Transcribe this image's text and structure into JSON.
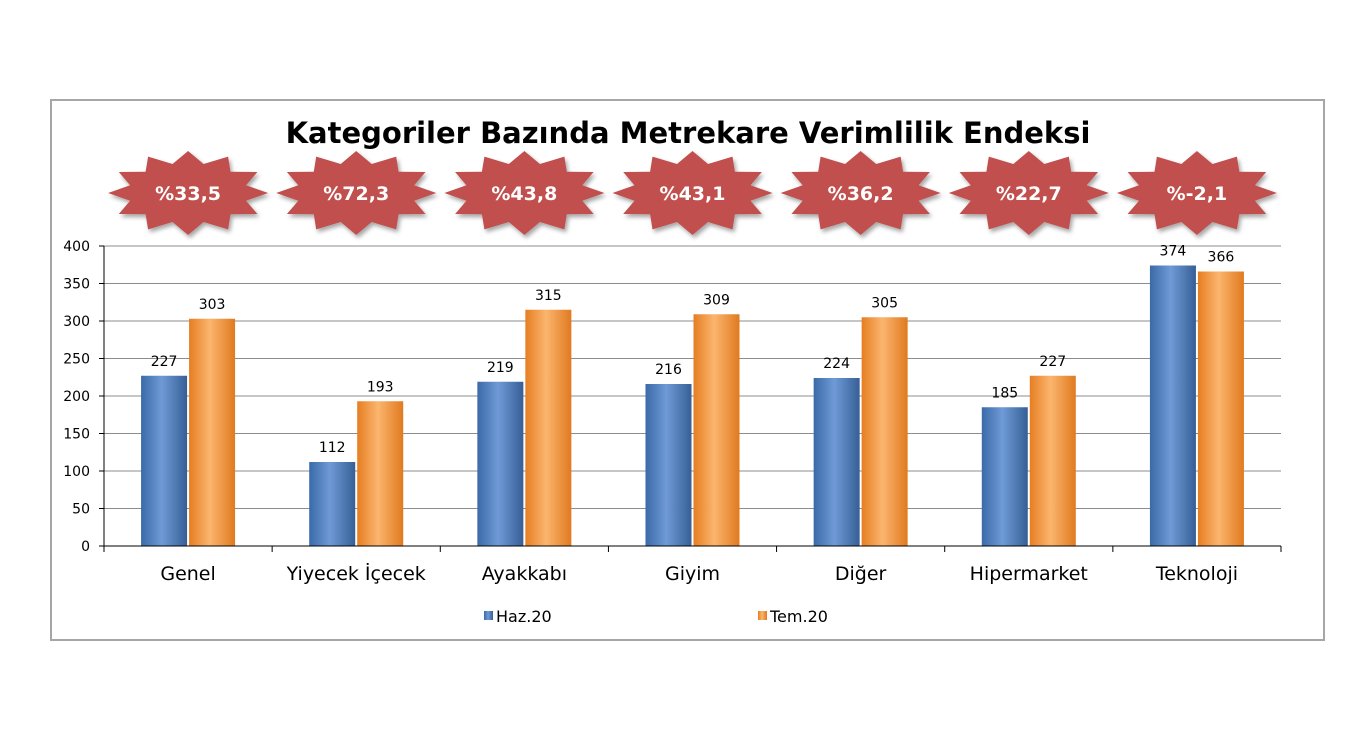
{
  "chart_data": {
    "type": "bar",
    "title": "Kategoriler Bazında Metrekare Verimlilik Endeksi",
    "xlabel": "",
    "ylabel": "",
    "categories": [
      "Genel",
      "Yiyecek İçecek",
      "Ayakkabı",
      "Giyim",
      "Diğer",
      "Hipermarket",
      "Teknoloji"
    ],
    "series": [
      {
        "name": "Haz.20",
        "values": [
          227,
          112,
          219,
          216,
          224,
          185,
          374
        ],
        "value_labels": [
          "227",
          "112",
          "219",
          "216",
          "224",
          "185",
          "374"
        ]
      },
      {
        "name": "Tem.20",
        "values": [
          303,
          193,
          315,
          309,
          305,
          227,
          366
        ],
        "value_labels": [
          "303",
          "193",
          "315",
          "309",
          "305",
          "227",
          "366"
        ]
      }
    ],
    "badges": [
      "%33,5",
      "%72,3",
      "%43,8",
      "%43,1",
      "%36,2",
      "%22,7",
      "%-2,1"
    ],
    "ylim": [
      0,
      400
    ],
    "yticks": [
      0,
      50,
      100,
      150,
      200,
      250,
      300,
      350,
      400
    ],
    "ytick_labels": [
      "0",
      "50",
      "100",
      "150",
      "200",
      "250",
      "300",
      "350",
      "400"
    ],
    "grid": true,
    "legend_position": "bottom"
  },
  "colors": {
    "series_1": "#4f81bd",
    "series_2": "#f79646",
    "badge": "#c0504d",
    "gridline": "#8c8c8c",
    "frame": "#a6a6a6"
  }
}
